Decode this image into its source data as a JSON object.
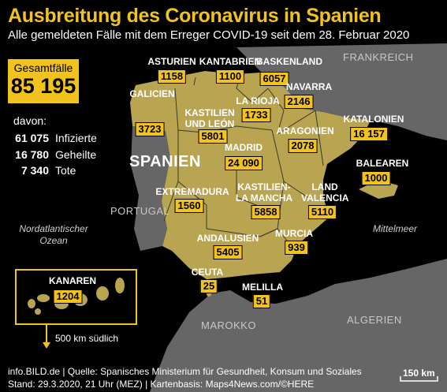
{
  "title": "Ausbreitung des Coronavirus in Spanien",
  "subtitle": "Alle gemeldeten Fälle mit dem Erreger COVID-19 seit dem 28. Februar 2020",
  "total": {
    "label": "Gesamtfälle",
    "value": "85 195"
  },
  "breakdown": {
    "intro": "davon:",
    "infected": {
      "value": "61 075",
      "label": "Infizierte"
    },
    "recovered": {
      "value": "16 780",
      "label": "Geheilte"
    },
    "dead": {
      "value": "7 340",
      "label": "Tote"
    }
  },
  "country_label": "SPANIEN",
  "neighbors": {
    "france": "FRANKREICH",
    "portugal": "PORTUGAL",
    "morocco": "MAROKKO",
    "algeria": "ALGERIEN"
  },
  "water": {
    "atlantic": "Nordatlantischer Ozean",
    "mediterranean": "Mittelmeer"
  },
  "regions": {
    "galicien": {
      "name": "GALICIEN",
      "cases": "3723"
    },
    "asturien": {
      "name": "ASTURIEN",
      "cases": "1158"
    },
    "kantabrien": {
      "name": "KANTABRIEN",
      "cases": "1100"
    },
    "baskenland": {
      "name": "BASKENLAND",
      "cases": "6057"
    },
    "navarra": {
      "name": "NAVARRA",
      "cases": "2146"
    },
    "larioja": {
      "name": "LA RIOJA",
      "cases": "1733"
    },
    "kastilien_leon": {
      "name": "KASTILIEN UND LEÓN",
      "cases": "5801"
    },
    "aragonien": {
      "name": "ARAGONIEN",
      "cases": "2078"
    },
    "katalonien": {
      "name": "KATALONIEN",
      "cases": "16 157"
    },
    "madrid": {
      "name": "MADRID",
      "cases": "24 090"
    },
    "extremadura": {
      "name": "EXTREMADURA",
      "cases": "1560"
    },
    "kastilien_mancha": {
      "name": "KASTILIEN-LA MANCHA",
      "cases": "5858"
    },
    "valencia": {
      "name": "LAND VALENCIA",
      "cases": "5110"
    },
    "balearen": {
      "name": "BALEAREN",
      "cases": "1000"
    },
    "andalusien": {
      "name": "ANDALUSIEN",
      "cases": "5405"
    },
    "murcia": {
      "name": "MURCIA",
      "cases": "939"
    },
    "ceuta": {
      "name": "CEUTA",
      "cases": "25"
    },
    "melilla": {
      "name": "MELILLA",
      "cases": "51"
    },
    "kanaren": {
      "name": "KANAREN",
      "cases": "1204"
    }
  },
  "canary_note": "500 km südlich",
  "scale": "150 km",
  "footer": {
    "line1": "info.BILD.de | Quelle: Spanisches Ministerium für Gesundheit, Konsum und Soziales",
    "line2": "Stand: 29.3.2020, 21 Uhr (MEZ) | Kartenbasis: Maps4News.com/©HERE"
  },
  "colors": {
    "accent": "#f2c21d",
    "spain": "#b9a452",
    "neighbor_land": "#666666",
    "sea": "#000000"
  }
}
